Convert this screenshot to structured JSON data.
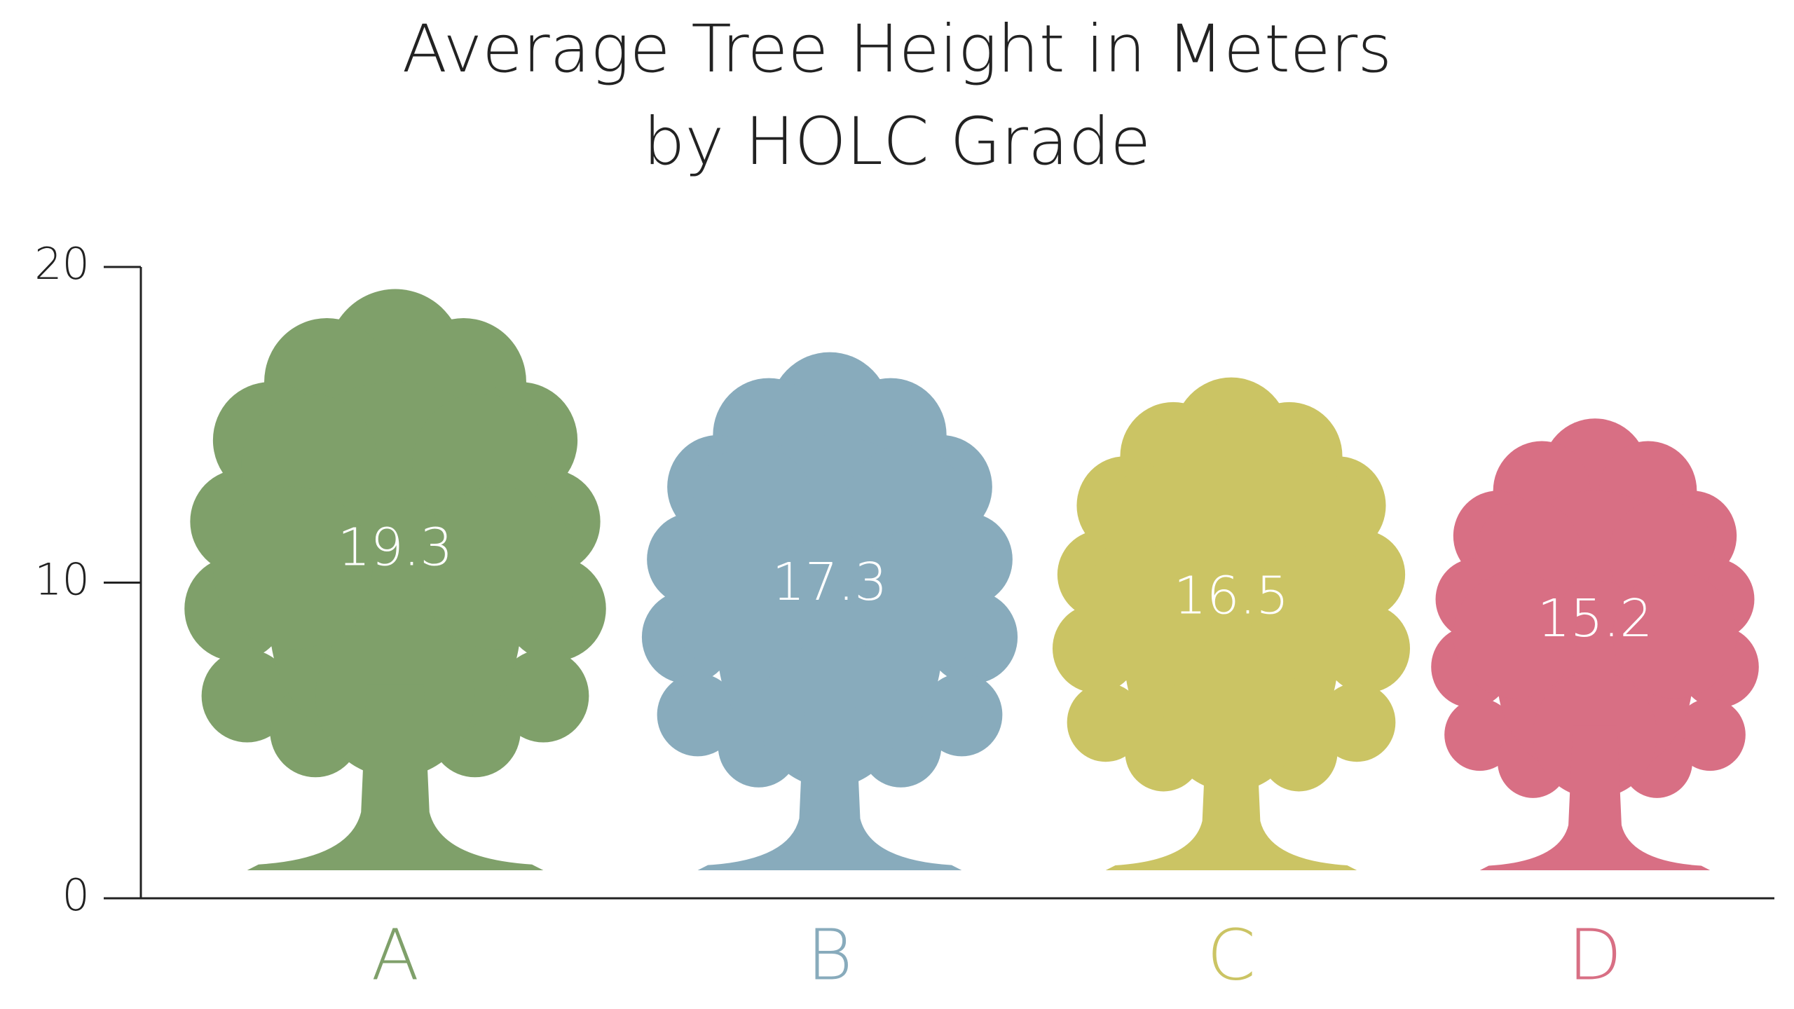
{
  "chart_data": {
    "type": "bar",
    "title": [
      "Average Tree Height in Meters",
      "by HOLC Grade"
    ],
    "categories": [
      "A",
      "B",
      "C",
      "D"
    ],
    "values": [
      19.3,
      17.3,
      16.5,
      15.2
    ],
    "colors": [
      "#7fa06a",
      "#88abbc",
      "#cbc464",
      "#d86f84"
    ],
    "ylim": [
      0,
      20
    ],
    "yticks": [
      0,
      10,
      20
    ]
  }
}
